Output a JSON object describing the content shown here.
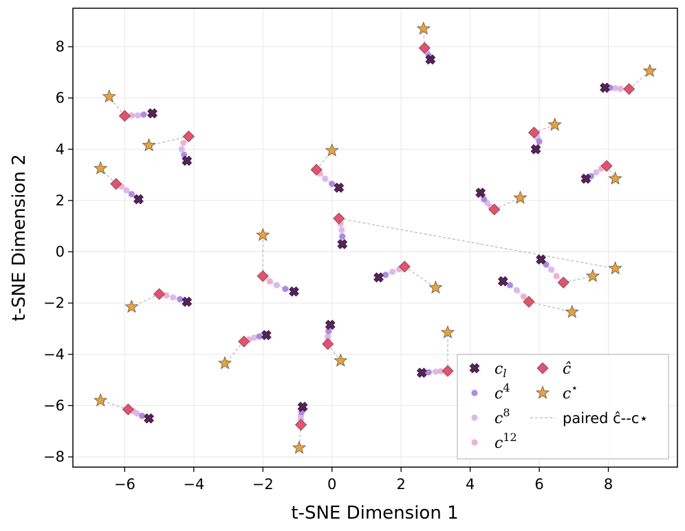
{
  "chart_data": {
    "type": "scatter",
    "xlabel": "t-SNE Dimension 1",
    "ylabel": "t-SNE Dimension 2",
    "xlim": [
      -7.5,
      10.0
    ],
    "ylim": [
      -8.4,
      9.5
    ],
    "xticks": [
      -6,
      -4,
      -2,
      0,
      2,
      4,
      6,
      8
    ],
    "yticks": [
      -8,
      -6,
      -4,
      -2,
      0,
      2,
      4,
      6,
      8
    ],
    "xtick_labels": [
      "−6",
      "−4",
      "−2",
      "0",
      "2",
      "4",
      "6",
      "8"
    ],
    "ytick_labels": [
      "−8",
      "−6",
      "−4",
      "−2",
      "0",
      "2",
      "4",
      "6",
      "8"
    ],
    "grid": true,
    "legend_position": "bottom-right",
    "colors": {
      "c_l": "#5b1f5e",
      "c4": "#a77fe0",
      "c8": "#d4b5ee",
      "c12": "#f4a6cc",
      "c_hat": "#ee4d6b",
      "c_star": "#f0a030",
      "pair_line": "#bbbbbb"
    },
    "legend": [
      {
        "key": "c_l",
        "marker": "x",
        "base": "c",
        "sub": "l",
        "sup": ""
      },
      {
        "key": "c4",
        "marker": "circle",
        "base": "c",
        "sub": "",
        "sup": "4"
      },
      {
        "key": "c8",
        "marker": "circle",
        "base": "c",
        "sub": "",
        "sup": "8"
      },
      {
        "key": "c12",
        "marker": "circle",
        "base": "c",
        "sub": "",
        "sup": "12"
      },
      {
        "key": "c_hat",
        "marker": "diamond",
        "base": "ĉ",
        "sub": "",
        "sup": ""
      },
      {
        "key": "c_star",
        "marker": "star",
        "base": "c",
        "sub": "",
        "sup": "⋆"
      },
      {
        "key": "pair_line",
        "marker": "dash",
        "text": "paired ĉ--c⋆"
      }
    ],
    "groups": [
      {
        "cl": [
          2.85,
          7.5
        ],
        "c4": [
          2.8,
          7.65
        ],
        "c8": [
          2.75,
          7.78
        ],
        "c12": [
          2.72,
          7.88
        ],
        "chat": [
          2.68,
          7.95
        ],
        "cstar": [
          2.65,
          8.7
        ]
      },
      {
        "cl": [
          -5.2,
          5.4
        ],
        "c4": [
          -5.45,
          5.35
        ],
        "c8": [
          -5.62,
          5.32
        ],
        "c12": [
          -5.8,
          5.32
        ],
        "chat": [
          -6.0,
          5.3
        ],
        "cstar": [
          -6.45,
          6.05
        ]
      },
      {
        "cl": [
          7.9,
          6.4
        ],
        "c4": [
          8.05,
          6.4
        ],
        "c8": [
          8.2,
          6.38
        ],
        "c12": [
          8.35,
          6.36
        ],
        "chat": [
          8.6,
          6.35
        ],
        "cstar": [
          9.2,
          7.05
        ]
      },
      {
        "cl": [
          -4.2,
          3.55
        ],
        "c4": [
          -4.28,
          3.78
        ],
        "c8": [
          -4.35,
          4.0
        ],
        "c12": [
          -4.3,
          4.25
        ],
        "chat": [
          -4.15,
          4.5
        ],
        "cstar": [
          -5.3,
          4.15
        ]
      },
      {
        "cl": [
          5.9,
          4.0
        ],
        "c4": [
          6.0,
          4.3
        ],
        "c8": [
          5.95,
          4.45
        ],
        "c12": [
          5.9,
          4.6
        ],
        "chat": [
          5.85,
          4.65
        ],
        "cstar": [
          6.45,
          4.95
        ]
      },
      {
        "cl": [
          0.2,
          2.5
        ],
        "c4": [
          0.0,
          2.65
        ],
        "c8": [
          -0.2,
          2.85
        ],
        "c12": [
          -0.35,
          3.05
        ],
        "chat": [
          -0.45,
          3.2
        ],
        "cstar": [
          0.0,
          3.95
        ]
      },
      {
        "cl": [
          -5.6,
          2.05
        ],
        "c4": [
          -5.8,
          2.25
        ],
        "c8": [
          -5.95,
          2.4
        ],
        "c12": [
          -6.1,
          2.55
        ],
        "chat": [
          -6.25,
          2.65
        ],
        "cstar": [
          -6.7,
          3.25
        ]
      },
      {
        "cl": [
          7.35,
          2.85
        ],
        "c4": [
          7.5,
          2.95
        ],
        "c8": [
          7.65,
          3.1
        ],
        "c12": [
          7.8,
          3.25
        ],
        "chat": [
          7.95,
          3.35
        ],
        "cstar": [
          8.2,
          2.85
        ]
      },
      {
        "cl": [
          4.3,
          2.3
        ],
        "c4": [
          4.4,
          2.05
        ],
        "c8": [
          4.5,
          1.9
        ],
        "c12": [
          4.6,
          1.75
        ],
        "chat": [
          4.7,
          1.65
        ],
        "cstar": [
          5.45,
          2.1
        ]
      },
      {
        "cl": [
          0.3,
          0.3
        ],
        "c4": [
          0.3,
          0.6
        ],
        "c8": [
          0.28,
          0.85
        ],
        "c12": [
          0.25,
          1.1
        ],
        "chat": [
          0.2,
          1.3
        ],
        "cstar": [
          8.2,
          -0.65
        ]
      },
      {
        "cl": [
          -1.1,
          -1.55
        ],
        "c4": [
          -1.35,
          -1.45
        ],
        "c8": [
          -1.6,
          -1.3
        ],
        "c12": [
          -1.8,
          -1.15
        ],
        "chat": [
          -2.0,
          -0.95
        ],
        "cstar": [
          -2.0,
          0.65
        ]
      },
      {
        "cl": [
          1.35,
          -1.0
        ],
        "c4": [
          1.55,
          -0.9
        ],
        "c8": [
          1.75,
          -0.78
        ],
        "c12": [
          1.95,
          -0.68
        ],
        "chat": [
          2.1,
          -0.58
        ],
        "cstar": [
          3.0,
          -1.4
        ]
      },
      {
        "cl": [
          6.05,
          -0.3
        ],
        "c4": [
          6.2,
          -0.5
        ],
        "c8": [
          6.35,
          -0.7
        ],
        "c12": [
          6.5,
          -0.95
        ],
        "chat": [
          6.7,
          -1.2
        ],
        "cstar": [
          7.55,
          -0.95
        ]
      },
      {
        "cl": [
          -4.2,
          -1.95
        ],
        "c4": [
          -4.4,
          -1.85
        ],
        "c8": [
          -4.6,
          -1.78
        ],
        "c12": [
          -4.8,
          -1.7
        ],
        "chat": [
          -5.0,
          -1.65
        ],
        "cstar": [
          -5.8,
          -2.15
        ]
      },
      {
        "cl": [
          4.95,
          -1.15
        ],
        "c4": [
          5.15,
          -1.3
        ],
        "c8": [
          5.35,
          -1.5
        ],
        "c12": [
          5.55,
          -1.75
        ],
        "chat": [
          5.7,
          -1.95
        ],
        "cstar": [
          6.95,
          -2.35
        ]
      },
      {
        "cl": [
          -1.9,
          -3.25
        ],
        "c4": [
          -2.1,
          -3.3
        ],
        "c8": [
          -2.25,
          -3.35
        ],
        "c12": [
          -2.4,
          -3.42
        ],
        "chat": [
          -2.55,
          -3.5
        ],
        "cstar": [
          -3.1,
          -4.35
        ]
      },
      {
        "cl": [
          -0.05,
          -2.85
        ],
        "c4": [
          -0.1,
          -3.1
        ],
        "c8": [
          -0.12,
          -3.3
        ],
        "c12": [
          -0.12,
          -3.45
        ],
        "chat": [
          -0.12,
          -3.6
        ],
        "cstar": [
          0.25,
          -4.25
        ]
      },
      {
        "cl": [
          2.6,
          -4.72
        ],
        "c4": [
          2.8,
          -4.7
        ],
        "c8": [
          3.0,
          -4.68
        ],
        "c12": [
          3.15,
          -4.66
        ],
        "chat": [
          3.35,
          -4.65
        ],
        "cstar": [
          3.35,
          -3.15
        ]
      },
      {
        "cl": [
          -5.3,
          -6.5
        ],
        "c4": [
          -5.5,
          -6.4
        ],
        "c8": [
          -5.65,
          -6.3
        ],
        "c12": [
          -5.75,
          -6.22
        ],
        "chat": [
          -5.9,
          -6.15
        ],
        "cstar": [
          -6.7,
          -5.8
        ]
      },
      {
        "cl": [
          -0.85,
          -6.05
        ],
        "c4": [
          -0.88,
          -6.25
        ],
        "c8": [
          -0.9,
          -6.4
        ],
        "c12": [
          -0.9,
          -6.55
        ],
        "chat": [
          -0.9,
          -6.75
        ],
        "cstar": [
          -0.95,
          -7.65
        ]
      }
    ]
  }
}
